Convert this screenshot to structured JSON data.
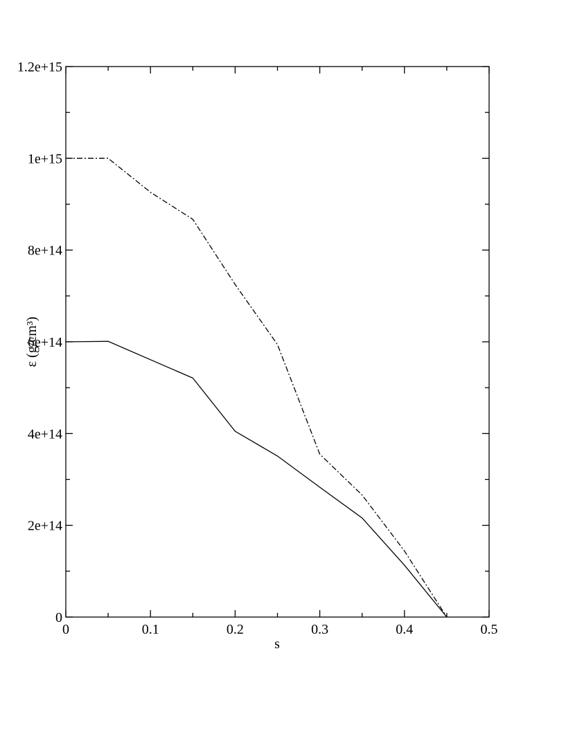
{
  "chart_data": {
    "type": "line",
    "x_label": "s",
    "y_label": "ε (g/cm³)",
    "x": [
      0,
      0.05,
      0.1,
      0.15,
      0.2,
      0.25,
      0.3,
      0.35,
      0.4,
      0.45
    ],
    "series": [
      {
        "color": "#000000",
        "style": "solid",
        "values": [
          600000000000000.0,
          601000000000000.0,
          561000000000000.0,
          521000000000000.0,
          405000000000000.0,
          351000000000000.0,
          283000000000000.0,
          216000000000000.0,
          113000000000000.0,
          0
        ]
      },
      {
        "color": "#000000",
        "style": "dashdot",
        "values": [
          1000000000000000.0,
          1000000000000000.0,
          926000000000000.0,
          867000000000000.0,
          725000000000000.0,
          594000000000000.0,
          355000000000000.0,
          266000000000000.0,
          144000000000000.0,
          0
        ]
      }
    ],
    "xlim": [
      0,
      0.5
    ],
    "ylim": [
      0,
      1200000000000000.0
    ],
    "xticks": [
      0,
      0.1,
      0.2,
      0.3,
      0.4,
      0.5
    ],
    "xminor_ticks": [
      0.05,
      0.15,
      0.25,
      0.35,
      0.45
    ],
    "yticks": [
      0,
      {
        "value": 200000000000000.0,
        "label": "2e+14"
      },
      {
        "value": 400000000000000.0,
        "label": "4e+14"
      },
      {
        "value": 600000000000000.0,
        "label": "6e+14"
      },
      {
        "value": 800000000000000.0,
        "label": "8e+14"
      },
      {
        "value": 1000000000000000.0,
        "label": "1e+15"
      },
      {
        "value": 1200000000000000.0,
        "label": "1.2e+15"
      }
    ],
    "yminor_ticks": [
      100000000000000.0,
      300000000000000.0,
      500000000000000.0,
      700000000000000.0,
      900000000000000.0,
      1100000000000000.0
    ],
    "grid": false
  }
}
